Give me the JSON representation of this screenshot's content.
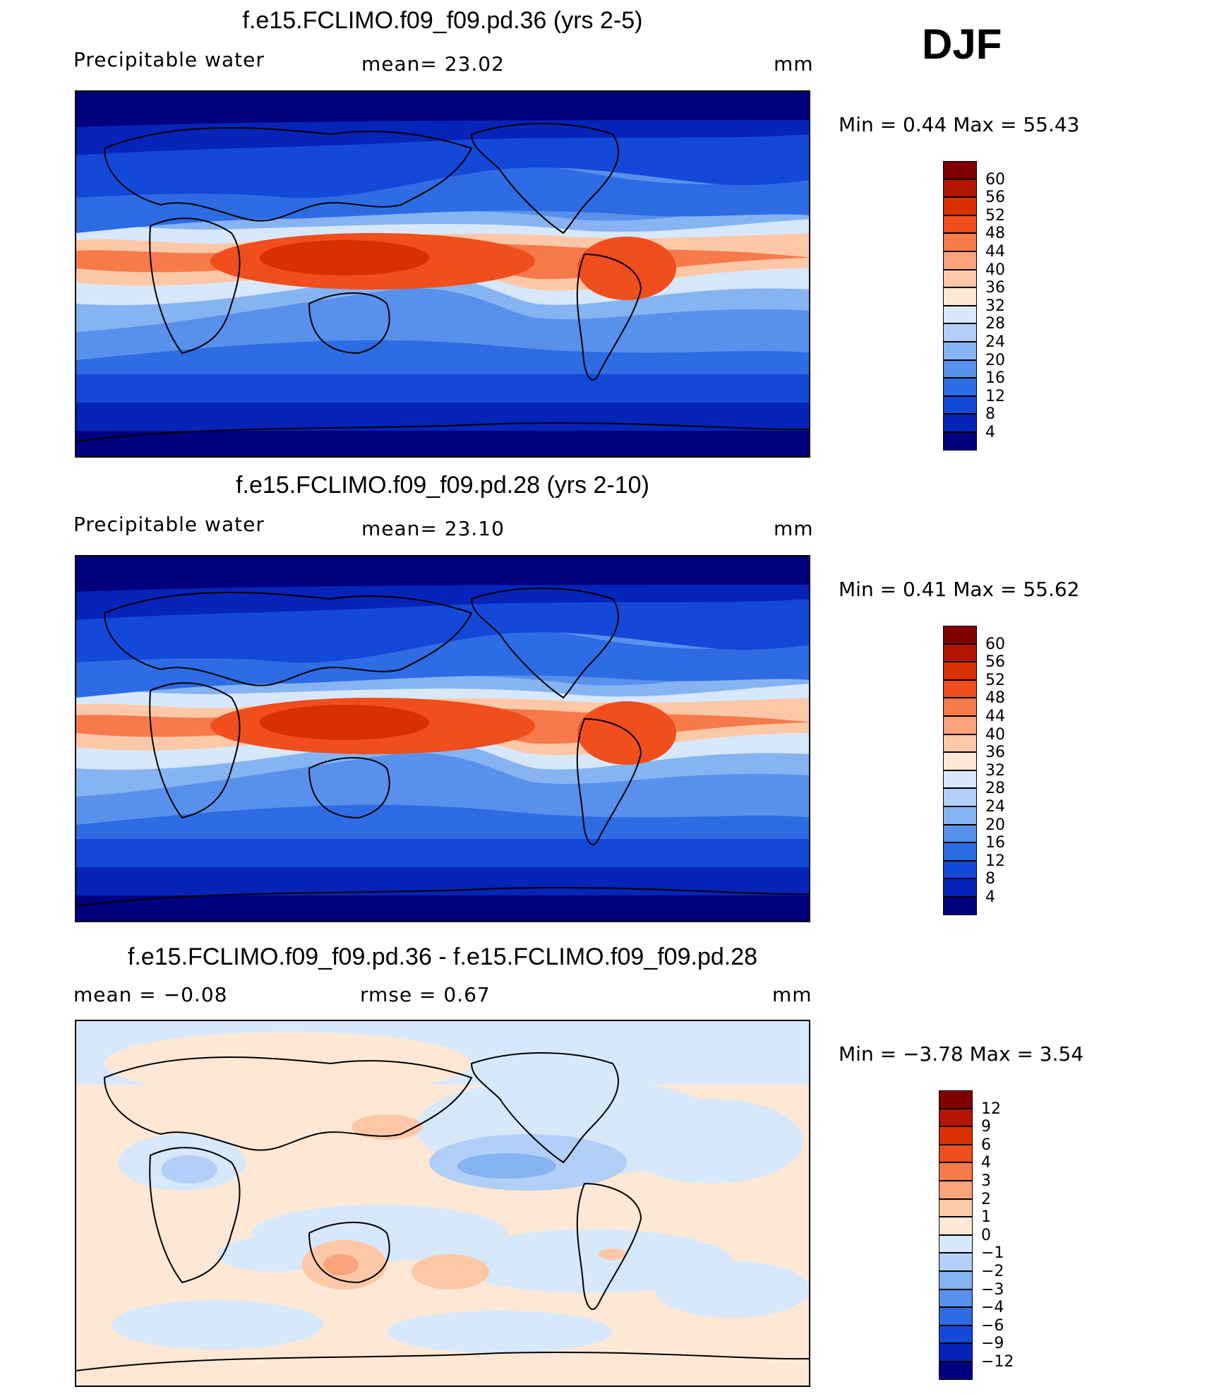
{
  "season": "DJF",
  "panels": [
    {
      "title": "f.e15.FCLIMO.f09_f09.pd.36 (yrs 2-5)",
      "left": "Precipitable  water",
      "center": "mean=   23.02",
      "right": "mm",
      "minmax": "Min  =     0.44  Max  =     55.43",
      "kind": "field"
    },
    {
      "title": "f.e15.FCLIMO.f09_f09.pd.28 (yrs 2-10)",
      "left": "Precipitable  water",
      "center": "mean=   23.10",
      "right": "mm",
      "minmax": "Min  =     0.41  Max  =     55.62",
      "kind": "field"
    },
    {
      "title": "f.e15.FCLIMO.f09_f09.pd.36 - f.e15.FCLIMO.f09_f09.pd.28",
      "left": "mean  =     −0.08",
      "center": "rmse  =     0.67",
      "right": "mm",
      "minmax": "Min  =    −3.78  Max  =       3.54",
      "kind": "diff"
    }
  ],
  "colorbars": {
    "field": {
      "labels": [
        "60",
        "56",
        "52",
        "48",
        "44",
        "40",
        "36",
        "32",
        "28",
        "24",
        "20",
        "16",
        "12",
        "8",
        "4"
      ],
      "colors": [
        "#7f0000",
        "#b31500",
        "#d93000",
        "#f04e1c",
        "#f77a4a",
        "#fba37b",
        "#fdc8a8",
        "#fde8d6",
        "#d7e8fb",
        "#b1cff7",
        "#86b3f2",
        "#5891ec",
        "#2e6ce4",
        "#1448d8",
        "#0624b8",
        "#00007f"
      ]
    },
    "diff": {
      "labels": [
        "12",
        "9",
        "6",
        "4",
        "3",
        "2",
        "1",
        "0",
        "−1",
        "−2",
        "−3",
        "−4",
        "−6",
        "−9",
        "−12"
      ],
      "colors": [
        "#7f0000",
        "#b31500",
        "#d93000",
        "#f04e1c",
        "#f77a4a",
        "#fba37b",
        "#fdc8a8",
        "#fde8d6",
        "#d7e8fb",
        "#b1cff7",
        "#86b3f2",
        "#5891ec",
        "#2e6ce4",
        "#1448d8",
        "#0624b8",
        "#00007f"
      ]
    }
  }
}
